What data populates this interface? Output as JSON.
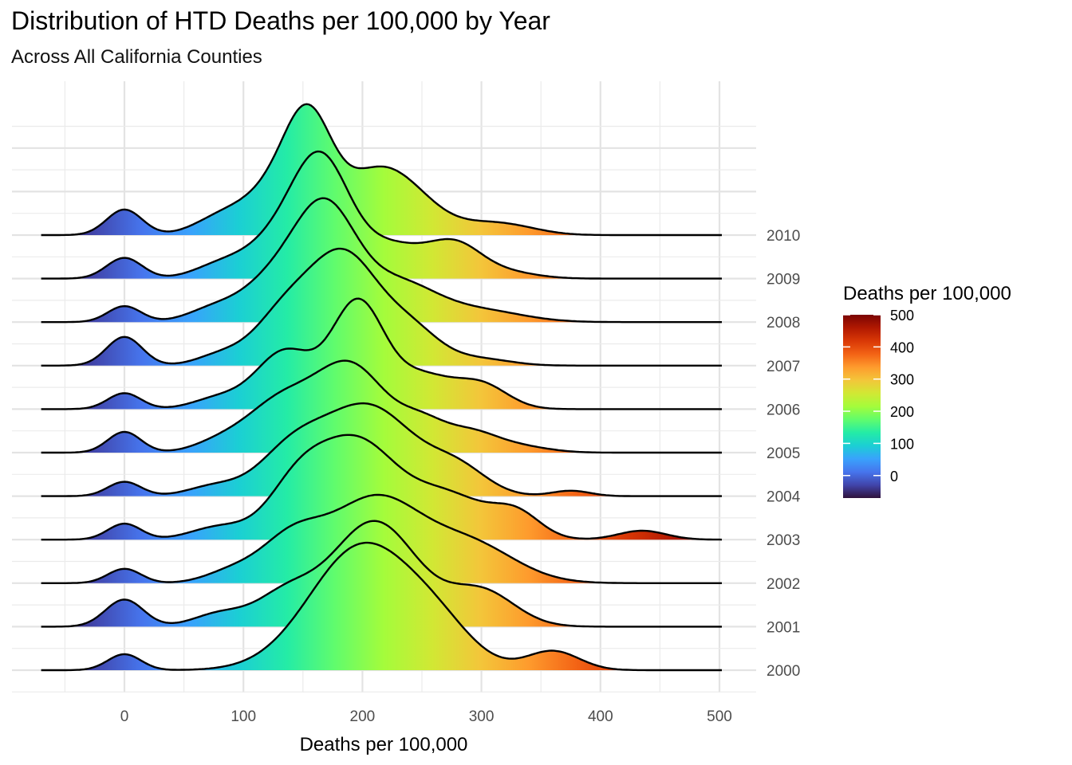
{
  "chart_data": {
    "type": "ridgeline",
    "title": "Distribution of HTD Deaths per 100,000 by Year",
    "subtitle": "Across All California Counties",
    "xlabel": "Deaths per 100,000",
    "ylabel": "",
    "xlim": [
      -70,
      502
    ],
    "x_ticks": [
      0,
      100,
      200,
      300,
      400,
      500
    ],
    "years": [
      "2000",
      "2001",
      "2002",
      "2003",
      "2004",
      "2005",
      "2006",
      "2007",
      "2008",
      "2009",
      "2010"
    ],
    "grid": true,
    "legend": {
      "title": "Deaths per 100,000",
      "placement": "right",
      "labels": [
        0,
        100,
        200,
        300,
        400,
        500
      ],
      "range": [
        -70,
        500
      ],
      "colormap": "turbo"
    },
    "series": [
      {
        "name": "2000",
        "peaks": [
          [
            0,
            0.5,
            14
          ],
          [
            200,
            3.9,
            44
          ],
          [
            265,
            0.9,
            30
          ],
          [
            360,
            0.6,
            22
          ]
        ]
      },
      {
        "name": "2001",
        "peaks": [
          [
            0,
            0.85,
            16
          ],
          [
            80,
            0.4,
            22
          ],
          [
            135,
            0.95,
            25
          ],
          [
            210,
            3.3,
            36
          ],
          [
            300,
            1.1,
            28
          ]
        ]
      },
      {
        "name": "2002",
        "peaks": [
          [
            0,
            0.45,
            14
          ],
          [
            90,
            0.35,
            22
          ],
          [
            140,
            1.3,
            26
          ],
          [
            210,
            2.6,
            38
          ],
          [
            290,
            1.2,
            38
          ]
        ]
      },
      {
        "name": "2003",
        "peaks": [
          [
            0,
            0.5,
            14
          ],
          [
            80,
            0.4,
            24
          ],
          [
            145,
            1.6,
            25
          ],
          [
            195,
            2.9,
            32
          ],
          [
            270,
            1.4,
            35
          ],
          [
            330,
            0.7,
            20
          ],
          [
            435,
            0.28,
            20
          ]
        ]
      },
      {
        "name": "2004",
        "peaks": [
          [
            0,
            0.45,
            14
          ],
          [
            75,
            0.3,
            22
          ],
          [
            140,
            1.3,
            28
          ],
          [
            205,
            2.8,
            38
          ],
          [
            280,
            0.8,
            25
          ],
          [
            375,
            0.17,
            16
          ]
        ]
      },
      {
        "name": "2005",
        "peaks": [
          [
            0,
            0.65,
            14
          ],
          [
            80,
            0.3,
            22
          ],
          [
            130,
            1.5,
            28
          ],
          [
            190,
            2.7,
            30
          ],
          [
            250,
            0.8,
            20
          ],
          [
            290,
            0.6,
            22
          ],
          [
            330,
            0.2,
            25
          ]
        ]
      },
      {
        "name": "2006",
        "peaks": [
          [
            0,
            0.5,
            14
          ],
          [
            80,
            0.35,
            22
          ],
          [
            135,
            1.8,
            24
          ],
          [
            196,
            3.3,
            22
          ],
          [
            250,
            1.0,
            25
          ],
          [
            300,
            0.75,
            22
          ]
        ]
      },
      {
        "name": "2007",
        "peaks": [
          [
            0,
            0.9,
            15
          ],
          [
            80,
            0.3,
            20
          ],
          [
            135,
            1.6,
            26
          ],
          [
            185,
            3.3,
            28
          ],
          [
            240,
            1.1,
            25
          ],
          [
            300,
            0.2,
            25
          ]
        ]
      },
      {
        "name": "2008",
        "peaks": [
          [
            0,
            0.5,
            14
          ],
          [
            75,
            0.4,
            22
          ],
          [
            122,
            1.1,
            25
          ],
          [
            168,
            3.5,
            26
          ],
          [
            230,
            1.2,
            32
          ],
          [
            300,
            0.35,
            35
          ]
        ]
      },
      {
        "name": "2009",
        "peaks": [
          [
            0,
            0.65,
            15
          ],
          [
            80,
            0.4,
            22
          ],
          [
            125,
            1.0,
            25
          ],
          [
            165,
            3.6,
            24
          ],
          [
            225,
            1.0,
            28
          ],
          [
            278,
            1.0,
            22
          ],
          [
            320,
            0.2,
            25
          ]
        ]
      },
      {
        "name": "2010",
        "peaks": [
          [
            0,
            0.8,
            15
          ],
          [
            80,
            0.5,
            22
          ],
          [
            125,
            1.3,
            25
          ],
          [
            155,
            3.2,
            20
          ],
          [
            210,
            1.8,
            28
          ],
          [
            245,
            0.7,
            25
          ],
          [
            300,
            0.3,
            28
          ],
          [
            330,
            0.15,
            25
          ]
        ]
      }
    ]
  }
}
